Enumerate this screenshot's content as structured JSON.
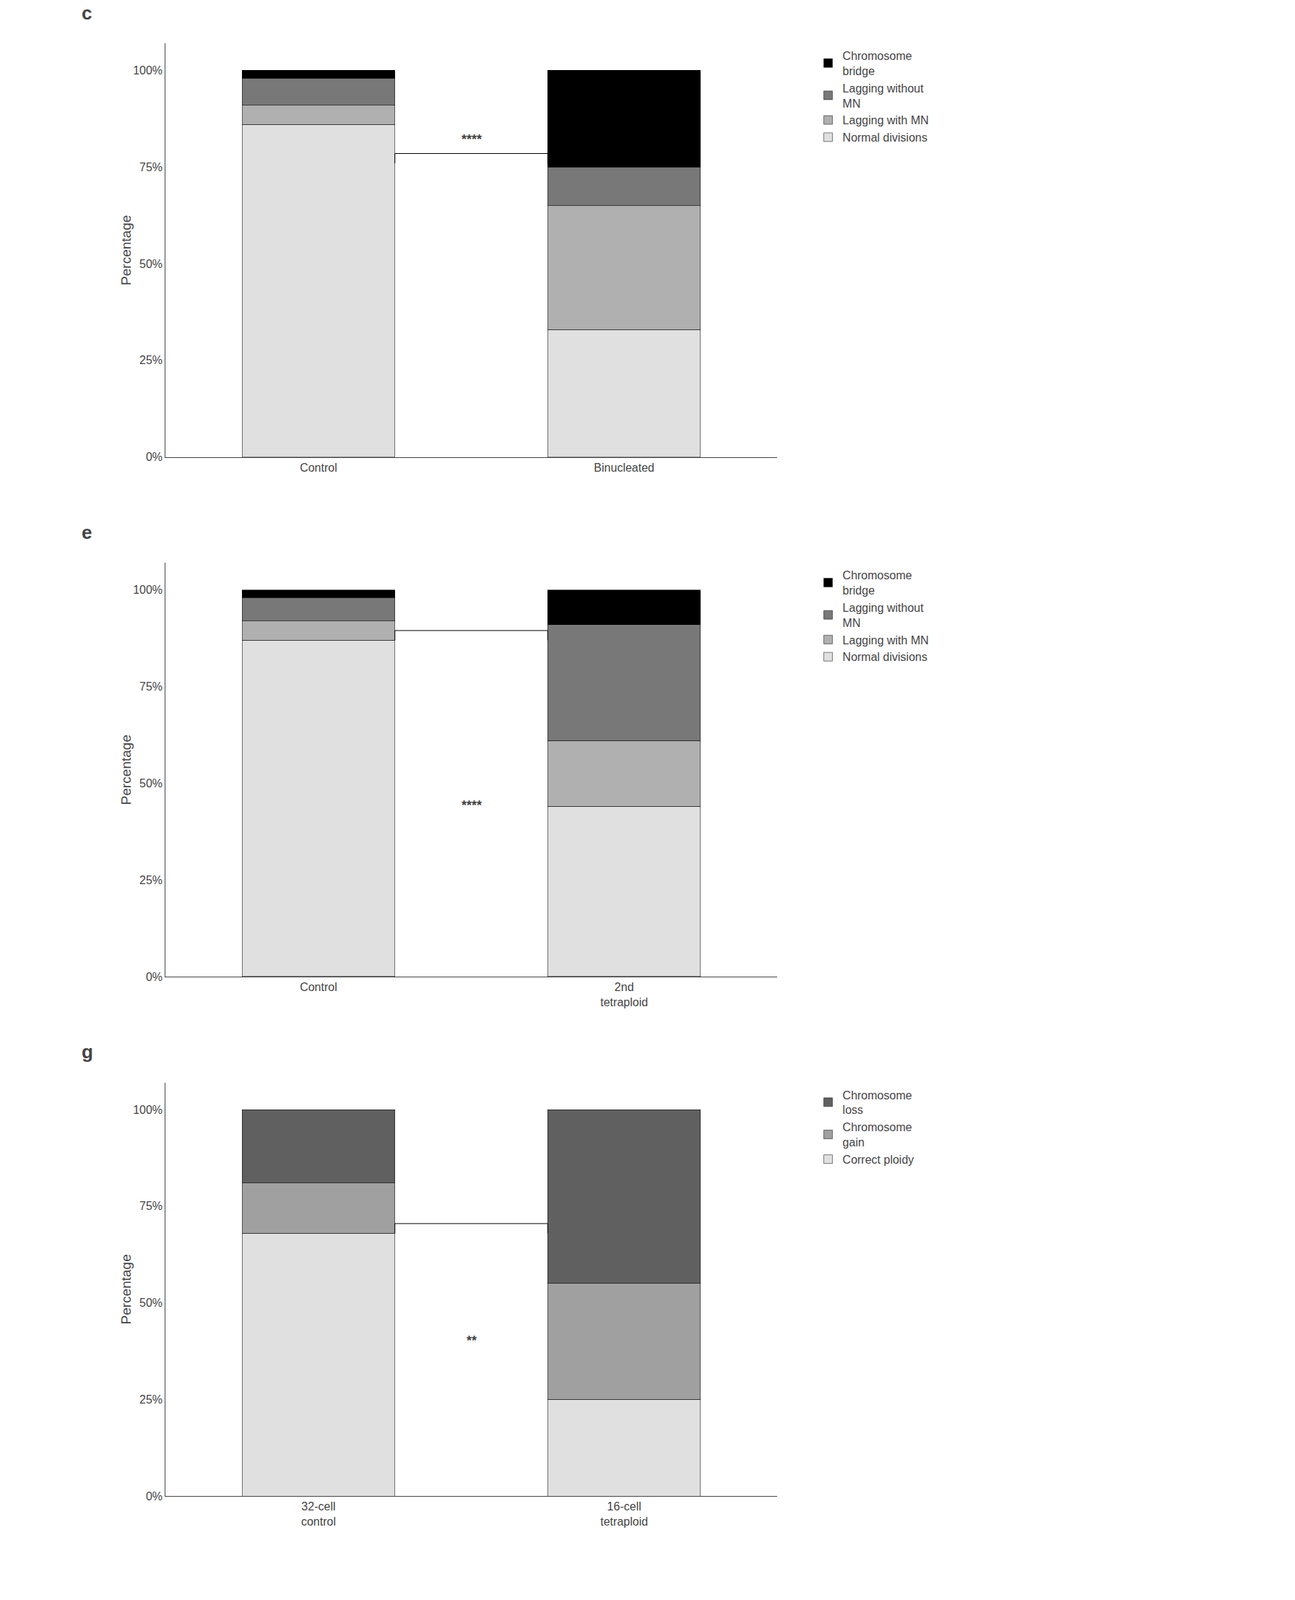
{
  "chart_data": [
    {
      "type": "bar",
      "stacked": true,
      "title": "c",
      "grid": false,
      "categories": [
        "Control",
        "Binucleated"
      ],
      "series": [
        {
          "name": "Normal divisions",
          "color": "#e0e0e0",
          "values": [
            86,
            33
          ]
        },
        {
          "name": "Lagging with MN",
          "color": "#b0b0b0",
          "values": [
            5,
            32
          ]
        },
        {
          "name": "Lagging without\nMN",
          "color": "#787878",
          "values": [
            7,
            10
          ]
        },
        {
          "name": "Chromosome\nbridge",
          "color": "#000000",
          "values": [
            2,
            25
          ]
        }
      ],
      "ylabel": "Percentage",
      "ylim": [
        0,
        107
      ],
      "yticks": [
        {
          "value": 0,
          "label": "0%"
        },
        {
          "value": 25,
          "label": "25%"
        },
        {
          "value": 50,
          "label": "50%"
        },
        {
          "value": 75,
          "label": "75%"
        },
        {
          "value": 100,
          "label": "100%"
        }
      ],
      "annotations": [
        {
          "text": "****",
          "y": 80,
          "bracket": [
            76,
            78.5
          ]
        }
      ]
    },
    {
      "type": "bar",
      "stacked": true,
      "title": "e",
      "grid": false,
      "categories": [
        "Control",
        "2nd\ntetraploid"
      ],
      "series": [
        {
          "name": "Normal divisions",
          "color": "#e0e0e0",
          "values": [
            87,
            44
          ]
        },
        {
          "name": "Lagging with MN",
          "color": "#b0b0b0",
          "values": [
            5,
            17
          ]
        },
        {
          "name": "Lagging without\nMN",
          "color": "#787878",
          "values": [
            6,
            30
          ]
        },
        {
          "name": "Chromosome\nbridge",
          "color": "#000000",
          "values": [
            2,
            9
          ]
        }
      ],
      "ylabel": "Percentage",
      "ylim": [
        0,
        107
      ],
      "yticks": [
        {
          "value": 0,
          "label": "0%"
        },
        {
          "value": 25,
          "label": "25%"
        },
        {
          "value": 50,
          "label": "50%"
        },
        {
          "value": 75,
          "label": "75%"
        },
        {
          "value": 100,
          "label": "100%"
        }
      ],
      "annotations": [
        {
          "text": "****",
          "y": 42,
          "bracket": [
            87,
            89.5
          ]
        }
      ]
    },
    {
      "type": "bar",
      "stacked": true,
      "title": "g",
      "grid": false,
      "categories": [
        "32-cell\ncontrol",
        "16-cell\ntetraploid"
      ],
      "series": [
        {
          "name": "Correct ploidy",
          "color": "#e0e0e0",
          "values": [
            68,
            25
          ]
        },
        {
          "name": "Chromosome\ngain",
          "color": "#a0a0a0",
          "values": [
            13,
            30
          ]
        },
        {
          "name": "Chromosome\nloss",
          "color": "#606060",
          "values": [
            19,
            45
          ]
        }
      ],
      "ylabel": "Percentage",
      "ylim": [
        0,
        107
      ],
      "yticks": [
        {
          "value": 0,
          "label": "0%"
        },
        {
          "value": 25,
          "label": "25%"
        },
        {
          "value": 50,
          "label": "50%"
        },
        {
          "value": 75,
          "label": "75%"
        },
        {
          "value": 100,
          "label": "100%"
        }
      ],
      "annotations": [
        {
          "text": "**",
          "y": 38,
          "bracket": [
            68,
            70.5
          ]
        }
      ]
    }
  ]
}
